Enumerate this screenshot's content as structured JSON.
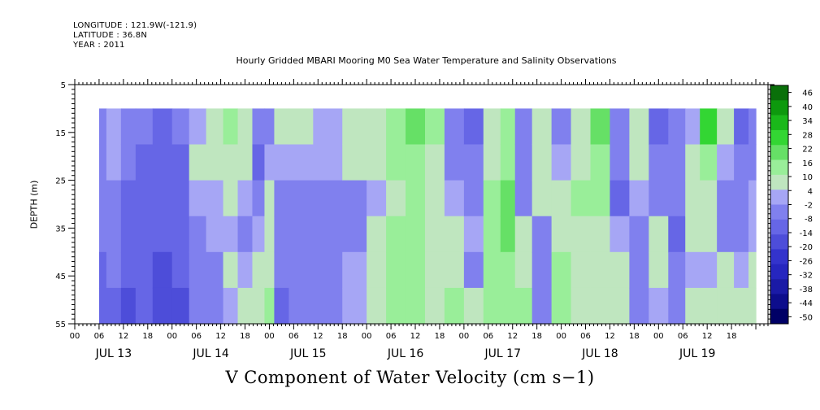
{
  "header": {
    "longitude_line": "LONGITUDE : 121.9W(-121.9)",
    "latitude_line": "LATITUDE : 36.8N",
    "year_line": "YEAR : 2011"
  },
  "chart_data": {
    "type": "heatmap",
    "title": "Hourly Gridded MBARI Mooring M0 Sea Water Temperature and Salinity Observations",
    "xlabel": "V Component of Water Velocity (cm s−1)",
    "ylabel": "DEPTH (m)",
    "ylim": [
      55,
      5
    ],
    "y_ticks": [
      5,
      15,
      25,
      35,
      45,
      55
    ],
    "y_data_range": [
      10,
      55
    ],
    "x_hour_ticks": [
      "00",
      "06",
      "12",
      "18",
      "00",
      "06",
      "12",
      "18",
      "00",
      "06",
      "12",
      "18",
      "00",
      "06",
      "12",
      "18",
      "00",
      "06",
      "12",
      "18",
      "00",
      "06",
      "12",
      "18",
      "00",
      "06",
      "12",
      "18"
    ],
    "x_day_labels": [
      "JUL 13",
      "JUL 14",
      "JUL 15",
      "JUL 16",
      "JUL 17",
      "JUL 18",
      "JUL 19"
    ],
    "x_range_days": [
      0,
      7.125
    ],
    "data_start_day": 0.25,
    "data_end_day": 7.0,
    "colorbar": {
      "levels": [
        -50,
        -44,
        -38,
        -32,
        -26,
        -20,
        -14,
        -8,
        -2,
        4,
        10,
        16,
        22,
        28,
        34,
        40,
        46
      ],
      "tick_labels": [
        "46",
        "40",
        "34",
        "28",
        "22",
        "16",
        "10",
        "4",
        "-2",
        "-8",
        "-14",
        "-20",
        "-26",
        "-32",
        "-38",
        "-44",
        "-50"
      ],
      "colors": [
        "#000066",
        "#0d0d8c",
        "#1a1aa6",
        "#2626bf",
        "#3333cc",
        "#4d4dd9",
        "#6666e6",
        "#8080ee",
        "#a6a6f5",
        "#bfe6bf",
        "#99ee99",
        "#66e066",
        "#33d633",
        "#1ab81a",
        "#0d990d",
        "#0a700a"
      ]
    },
    "bands": [
      {
        "day": 0.25,
        "v": [
          -5,
          -4,
          -6,
          -8,
          -10,
          -12
        ]
      },
      {
        "day": 0.4,
        "v": [
          2,
          3,
          -3,
          -6,
          -8,
          -10
        ]
      },
      {
        "day": 0.55,
        "v": [
          -6,
          -8,
          -10,
          -12,
          -14,
          -15
        ]
      },
      {
        "day": 0.7,
        "v": [
          -8,
          -10,
          -12,
          -10,
          -12,
          -14
        ]
      },
      {
        "day": 0.9,
        "v": [
          -10,
          -12,
          -14,
          -14,
          -16,
          -16
        ]
      },
      {
        "day": 1.1,
        "v": [
          -8,
          -10,
          -12,
          -12,
          -14,
          -16
        ]
      },
      {
        "day": 1.25,
        "v": [
          2,
          4,
          -2,
          -4,
          -6,
          -8
        ]
      },
      {
        "day": 1.45,
        "v": [
          6,
          4,
          2,
          -2,
          -6,
          -4
        ]
      },
      {
        "day": 1.6,
        "v": [
          14,
          8,
          4,
          2,
          4,
          2
        ]
      },
      {
        "day": 1.75,
        "v": [
          6,
          4,
          2,
          -4,
          -2,
          4
        ]
      },
      {
        "day": 1.9,
        "v": [
          -8,
          -10,
          -6,
          2,
          4,
          8
        ]
      },
      {
        "day": 2.0,
        "v": [
          -4,
          -2,
          4,
          6,
          8,
          10
        ]
      },
      {
        "day": 2.1,
        "v": [
          6,
          2,
          -4,
          -6,
          -8,
          -10
        ]
      },
      {
        "day": 2.3,
        "v": [
          4,
          2,
          -4,
          -6,
          -6,
          -6
        ]
      },
      {
        "day": 2.6,
        "v": [
          3,
          2,
          -4,
          -5,
          -5,
          -5
        ]
      },
      {
        "day": 2.9,
        "v": [
          4,
          4,
          -4,
          -4,
          2,
          3
        ]
      },
      {
        "day": 3.1,
        "v": [
          8,
          6,
          2,
          4,
          6,
          4
        ]
      },
      {
        "day": 3.3,
        "v": [
          12,
          10,
          8,
          10,
          12,
          12
        ]
      },
      {
        "day": 3.5,
        "v": [
          18,
          14,
          10,
          12,
          10,
          14
        ]
      },
      {
        "day": 3.7,
        "v": [
          10,
          8,
          6,
          4,
          6,
          8
        ]
      },
      {
        "day": 3.9,
        "v": [
          -6,
          -4,
          2,
          4,
          6,
          10
        ]
      },
      {
        "day": 4.1,
        "v": [
          -10,
          -8,
          -4,
          2,
          -4,
          4
        ]
      },
      {
        "day": 4.3,
        "v": [
          6,
          8,
          10,
          14,
          12,
          10
        ]
      },
      {
        "day": 4.45,
        "v": [
          10,
          12,
          16,
          18,
          14,
          12
        ]
      },
      {
        "day": 4.6,
        "v": [
          -4,
          -6,
          -8,
          4,
          8,
          10
        ]
      },
      {
        "day": 4.8,
        "v": [
          8,
          6,
          4,
          -6,
          -8,
          -4
        ]
      },
      {
        "day": 5.0,
        "v": [
          -6,
          2,
          6,
          8,
          10,
          12
        ]
      },
      {
        "day": 5.2,
        "v": [
          4,
          6,
          10,
          8,
          6,
          4
        ]
      },
      {
        "day": 5.4,
        "v": [
          18,
          14,
          10,
          8,
          6,
          8
        ]
      },
      {
        "day": 5.6,
        "v": [
          -6,
          -8,
          -10,
          2,
          4,
          8
        ]
      },
      {
        "day": 5.8,
        "v": [
          6,
          8,
          2,
          -6,
          -8,
          -4
        ]
      },
      {
        "day": 6.0,
        "v": [
          -10,
          -8,
          -4,
          4,
          6,
          2
        ]
      },
      {
        "day": 6.2,
        "v": [
          -4,
          -6,
          -8,
          -10,
          -8,
          -6
        ]
      },
      {
        "day": 6.35,
        "v": [
          2,
          4,
          6,
          4,
          2,
          6
        ]
      },
      {
        "day": 6.5,
        "v": [
          22,
          12,
          8,
          4,
          2,
          4
        ]
      },
      {
        "day": 6.7,
        "v": [
          4,
          2,
          -4,
          -6,
          4,
          6
        ]
      },
      {
        "day": 6.85,
        "v": [
          -10,
          -8,
          -6,
          -4,
          2,
          4
        ]
      },
      {
        "day": 7.0,
        "v": [
          -6,
          -4,
          -2,
          2,
          4,
          4
        ]
      }
    ]
  }
}
